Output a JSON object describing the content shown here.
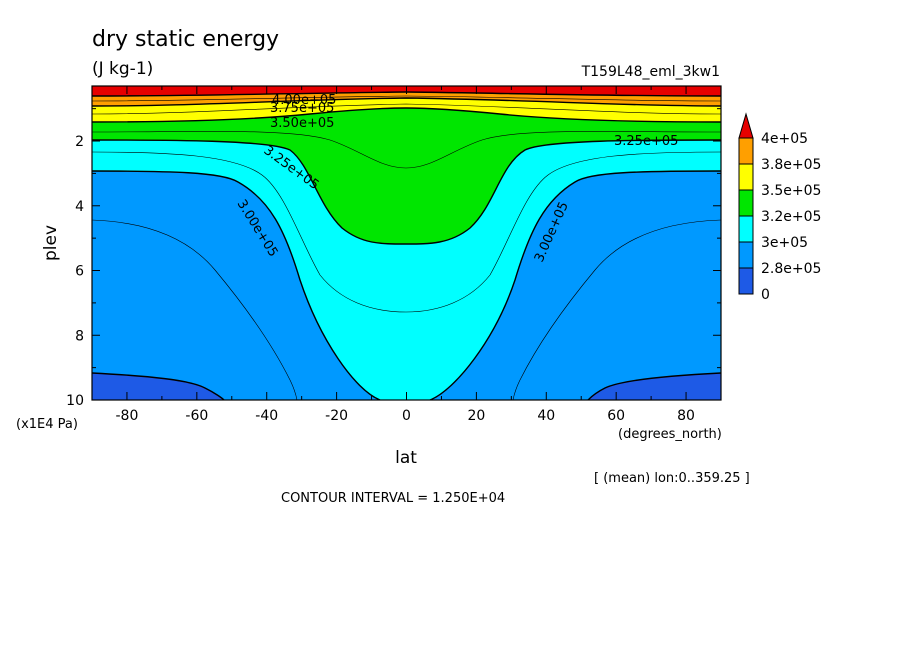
{
  "chart_data": {
    "type": "contour",
    "title": "dry static energy",
    "units": "(J kg-1)",
    "dataset": "T159L48_eml_3kw1",
    "xlabel": "lat",
    "x_units": "(degrees_north)",
    "ylabel": "plev",
    "y_units": "(x1E4 Pa)",
    "x_ticks": [
      -80,
      -60,
      -40,
      -20,
      0,
      20,
      40,
      60,
      80
    ],
    "y_ticks": [
      2,
      4,
      6,
      8,
      10
    ],
    "xlim": [
      -90,
      90
    ],
    "ylim": [
      10,
      0.3
    ],
    "y_reversed": true,
    "averaging": "[ (mean) lon:0..359.25 ]",
    "contour_interval": "CONTOUR INTERVAL = 1.250E+04",
    "contour_labels": [
      "4.00e+05",
      "3.75e+05",
      "3.50e+05",
      "3.25e+05",
      "3.25e+05",
      "3.00e+05",
      "3.00e+05"
    ],
    "colorbar": {
      "labels": [
        "4e+05",
        "3.8e+05",
        "3.5e+05",
        "3.2e+05",
        "3e+05",
        "2.8e+05",
        "0"
      ],
      "colors": [
        "#e60000",
        "#ff9f00",
        "#ffff00",
        "#00e600",
        "#00ffff",
        "#0099ff",
        "#1e5ae6"
      ]
    },
    "fill_colors": {
      "below_2.75e5": "#1e5ae6",
      "2.75e5_3.00e5": "#0099ff",
      "3.00e5_3.25e5": "#00ffff",
      "3.25e5_3.50e5": "#00e600",
      "3.50e5_3.75e5": "#ffff00",
      "3.75e5_4.00e5": "#ff9f00",
      "above_4.00e5": "#e60000"
    }
  }
}
